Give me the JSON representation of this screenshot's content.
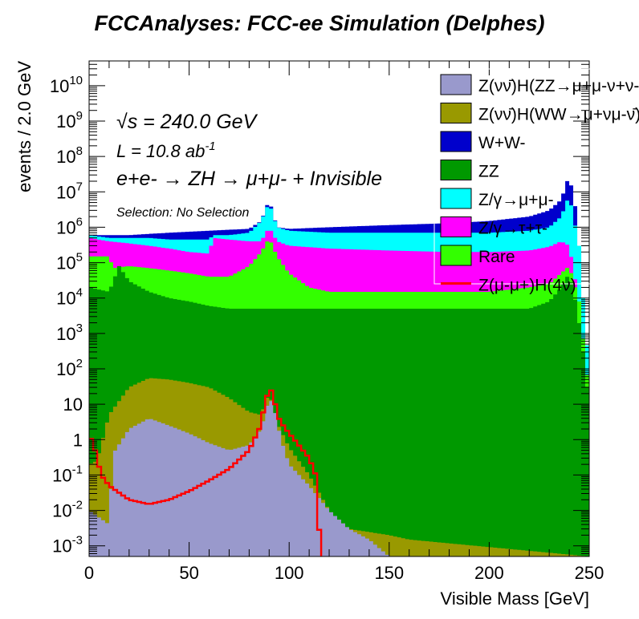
{
  "chart_data": {
    "type": "area",
    "title": "FCCAnalyses: FCC-ee Simulation (Delphes)",
    "xlabel": "Visible Mass [GeV]",
    "ylabel": "events / 2.0 GeV",
    "xlim": [
      0,
      250
    ],
    "ylim": [
      0.0005,
      50000000000
    ],
    "yscale": "log",
    "grid": false,
    "legend_position": "top-right",
    "x_ticks": [
      "0",
      "50",
      "100",
      "150",
      "200",
      "250"
    ],
    "y_ticks": [
      {
        "value": 0.001,
        "mant": "10",
        "exp": "-3"
      },
      {
        "value": 0.01,
        "mant": "10",
        "exp": "-2"
      },
      {
        "value": 0.1,
        "mant": "10",
        "exp": "-1"
      },
      {
        "value": 1,
        "mant": "1",
        "exp": ""
      },
      {
        "value": 10,
        "mant": "10",
        "exp": ""
      },
      {
        "value": 100,
        "mant": "10",
        "exp": "2"
      },
      {
        "value": 1000,
        "mant": "10",
        "exp": "3"
      },
      {
        "value": 10000,
        "mant": "10",
        "exp": "4"
      },
      {
        "value": 100000,
        "mant": "10",
        "exp": "5"
      },
      {
        "value": 1000000,
        "mant": "10",
        "exp": "6"
      },
      {
        "value": 10000000,
        "mant": "10",
        "exp": "7"
      },
      {
        "value": 100000000,
        "mant": "10",
        "exp": "8"
      },
      {
        "value": 1000000000,
        "mant": "10",
        "exp": "9"
      },
      {
        "value": 10000000000,
        "mant": "10",
        "exp": "10"
      }
    ],
    "annotations": {
      "sqrt_s": "s = 240.0 GeV",
      "lumi": "L = 10.8 ab",
      "lumi_exp": "-1",
      "process": "e+e- → ZH → μ+μ- + Invisible",
      "selection": "Selection: No Selection"
    },
    "series_order_bottom_to_top": [
      "ZnunuH_ZZ",
      "ZnunuH_WW",
      "ZZ",
      "Rare",
      "Ztautau",
      "Zmumu",
      "WW"
    ],
    "series": [
      {
        "id": "ZnunuH_ZZ",
        "name": "Z(νν̄)H(ZZ→μ+μ-ν+ν-)",
        "color": "#9999cc",
        "kind": "stack",
        "points": [
          [
            0,
            0.01
          ],
          [
            10,
            0.004
          ],
          [
            12,
            0.4
          ],
          [
            20,
            2
          ],
          [
            30,
            4
          ],
          [
            40,
            2.5
          ],
          [
            50,
            1.5
          ],
          [
            60,
            0.8
          ],
          [
            70,
            0.5
          ],
          [
            80,
            0.7
          ],
          [
            86,
            2
          ],
          [
            90,
            15
          ],
          [
            92,
            10
          ],
          [
            96,
            1
          ],
          [
            100,
            0.2
          ],
          [
            110,
            0.05
          ],
          [
            120,
            0.01
          ],
          [
            130,
            0.003
          ],
          [
            140,
            0.0015
          ],
          [
            150,
            0.0005
          ],
          [
            250,
            0.0005
          ]
        ]
      },
      {
        "id": "ZnunuH_WW",
        "name": "Z(νν̄)H(WW→μ+νμ-ν̄)",
        "color": "#999900",
        "kind": "stack",
        "points": [
          [
            0,
            0.2
          ],
          [
            4,
            0.25
          ],
          [
            10,
            5
          ],
          [
            20,
            30
          ],
          [
            30,
            55
          ],
          [
            40,
            50
          ],
          [
            50,
            40
          ],
          [
            60,
            30
          ],
          [
            70,
            15
          ],
          [
            80,
            6
          ],
          [
            86,
            5
          ],
          [
            90,
            22
          ],
          [
            94,
            3
          ],
          [
            100,
            0.6
          ],
          [
            110,
            0.1
          ],
          [
            120,
            0.01
          ],
          [
            130,
            0.003
          ],
          [
            150,
            0.002
          ],
          [
            160,
            0.0015
          ],
          [
            250,
            0.0005
          ]
        ]
      },
      {
        "id": "ZZ",
        "name": "ZZ",
        "color": "#009900",
        "kind": "stack",
        "points": [
          [
            0,
            20000
          ],
          [
            10,
            15000
          ],
          [
            15,
            80000
          ],
          [
            20,
            30000
          ],
          [
            30,
            15000
          ],
          [
            40,
            10000
          ],
          [
            50,
            8000
          ],
          [
            60,
            6000
          ],
          [
            70,
            5000
          ],
          [
            80,
            5000
          ],
          [
            90,
            5000
          ],
          [
            100,
            5000
          ],
          [
            110,
            5000
          ],
          [
            120,
            5000
          ],
          [
            140,
            5000
          ],
          [
            160,
            5000
          ],
          [
            180,
            5000
          ],
          [
            200,
            5000
          ],
          [
            220,
            5000
          ],
          [
            230,
            8000
          ],
          [
            236,
            20000
          ],
          [
            240,
            50000
          ],
          [
            244,
            5000
          ],
          [
            247,
            300
          ],
          [
            250,
            10
          ]
        ]
      },
      {
        "id": "Rare",
        "name": "Rare",
        "color": "#33ff00",
        "kind": "stack",
        "points": [
          [
            0,
            150000
          ],
          [
            10,
            150000
          ],
          [
            12,
            70000
          ],
          [
            20,
            80000
          ],
          [
            30,
            70000
          ],
          [
            40,
            60000
          ],
          [
            50,
            50000
          ],
          [
            60,
            40000
          ],
          [
            62,
            40000
          ],
          [
            70,
            40000
          ],
          [
            80,
            80000
          ],
          [
            86,
            200000
          ],
          [
            90,
            500000
          ],
          [
            94,
            150000
          ],
          [
            100,
            50000
          ],
          [
            110,
            20000
          ],
          [
            120,
            15000
          ],
          [
            150,
            15000
          ],
          [
            180,
            15000
          ],
          [
            200,
            15000
          ],
          [
            220,
            20000
          ],
          [
            230,
            25000
          ],
          [
            240,
            80000
          ],
          [
            245,
            8000
          ],
          [
            250,
            20
          ]
        ]
      },
      {
        "id": "Ztautau",
        "name": "Z/γ→τ+τ-",
        "color": "#ff00ff",
        "kind": "stack",
        "points": [
          [
            0,
            500000
          ],
          [
            10,
            400000
          ],
          [
            20,
            350000
          ],
          [
            30,
            300000
          ],
          [
            40,
            250000
          ],
          [
            50,
            200000
          ],
          [
            60,
            180000
          ],
          [
            62,
            500000
          ],
          [
            70,
            450000
          ],
          [
            80,
            400000
          ],
          [
            86,
            400000
          ],
          [
            90,
            1000000
          ],
          [
            94,
            400000
          ],
          [
            100,
            300000
          ],
          [
            120,
            250000
          ],
          [
            150,
            220000
          ],
          [
            180,
            200000
          ],
          [
            200,
            200000
          ],
          [
            220,
            220000
          ],
          [
            230,
            280000
          ],
          [
            236,
            400000
          ],
          [
            240,
            300000
          ],
          [
            245,
            8000
          ],
          [
            250,
            20
          ]
        ]
      },
      {
        "id": "Zmumu",
        "name": "Z/γ→μ+μ-",
        "color": "#00ffff",
        "kind": "stack",
        "points": [
          [
            0,
            600000
          ],
          [
            10,
            500000
          ],
          [
            20,
            500000
          ],
          [
            30,
            500000
          ],
          [
            40,
            450000
          ],
          [
            50,
            450000
          ],
          [
            60,
            450000
          ],
          [
            62,
            600000
          ],
          [
            70,
            600000
          ],
          [
            80,
            700000
          ],
          [
            86,
            1500000
          ],
          [
            90,
            5000000
          ],
          [
            94,
            1000000
          ],
          [
            100,
            800000
          ],
          [
            120,
            700000
          ],
          [
            150,
            700000
          ],
          [
            180,
            700000
          ],
          [
            200,
            700000
          ],
          [
            220,
            800000
          ],
          [
            230,
            1000000
          ],
          [
            236,
            2000000
          ],
          [
            240,
            8000000
          ],
          [
            245,
            300000
          ],
          [
            247,
            10000
          ],
          [
            250,
            100
          ]
        ]
      },
      {
        "id": "WW",
        "name": "W+W-",
        "color": "#0000cc",
        "kind": "stack",
        "points": [
          [
            0,
            600000
          ],
          [
            10,
            600000
          ],
          [
            20,
            600000
          ],
          [
            30,
            650000
          ],
          [
            40,
            700000
          ],
          [
            50,
            750000
          ],
          [
            60,
            800000
          ],
          [
            70,
            850000
          ],
          [
            80,
            900000
          ],
          [
            86,
            1500000
          ],
          [
            90,
            6000000
          ],
          [
            94,
            1000000
          ],
          [
            100,
            900000
          ],
          [
            120,
            1000000
          ],
          [
            140,
            1100000
          ],
          [
            160,
            1200000
          ],
          [
            180,
            1300000
          ],
          [
            200,
            1500000
          ],
          [
            220,
            2000000
          ],
          [
            230,
            3000000
          ],
          [
            236,
            6000000
          ],
          [
            240,
            30000000
          ],
          [
            244,
            2000000
          ],
          [
            246,
            20000
          ],
          [
            248,
            1000
          ],
          [
            250,
            100
          ]
        ]
      },
      {
        "id": "signal",
        "name": "Z(μ-μ+)H(4ν)",
        "color": "#ff0000",
        "kind": "line",
        "points": [
          [
            0,
            1.5
          ],
          [
            3,
            0.5
          ],
          [
            6,
            0.1
          ],
          [
            10,
            0.05
          ],
          [
            20,
            0.02
          ],
          [
            30,
            0.015
          ],
          [
            40,
            0.02
          ],
          [
            50,
            0.035
          ],
          [
            60,
            0.07
          ],
          [
            70,
            0.15
          ],
          [
            80,
            0.5
          ],
          [
            85,
            2
          ],
          [
            88,
            10
          ],
          [
            90,
            30
          ],
          [
            92,
            20
          ],
          [
            94,
            5
          ],
          [
            96,
            3
          ],
          [
            100,
            1.5
          ],
          [
            104,
            0.8
          ],
          [
            110,
            0.3
          ],
          [
            114,
            0.08
          ],
          [
            116,
            0.0001
          ],
          [
            250,
            0.0001
          ]
        ]
      }
    ],
    "legend_entries": [
      {
        "label": "Z(νν̄)H(ZZ→μ+μ-ν+ν-)",
        "color": "#9999cc",
        "kind": "box"
      },
      {
        "label": "Z(νν̄)H(WW→μ+νμ-ν̄)",
        "color": "#999900",
        "kind": "box"
      },
      {
        "label": "W+W-",
        "color": "#0000cc",
        "kind": "box"
      },
      {
        "label": "ZZ",
        "color": "#009900",
        "kind": "box"
      },
      {
        "label": "Z/γ→μ+μ-",
        "color": "#00ffff",
        "kind": "box"
      },
      {
        "label": "Z/γ→τ+τ-",
        "color": "#ff00ff",
        "kind": "box"
      },
      {
        "label": "Rare",
        "color": "#33ff00",
        "kind": "box"
      },
      {
        "label": "Z(μ-μ+)H(4ν)",
        "color": "#ff0000",
        "kind": "line"
      }
    ]
  }
}
